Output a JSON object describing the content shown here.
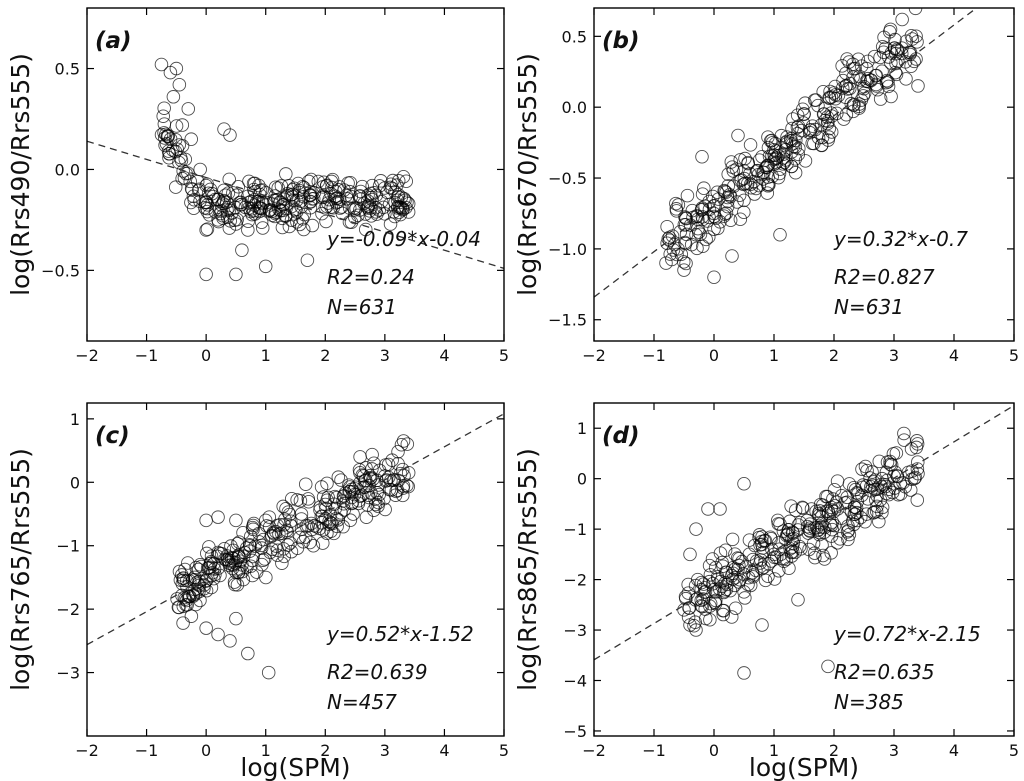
{
  "chart_data": [
    {
      "type": "scatter",
      "panel_label": "(a)",
      "ylabel": "log(Rrs490/Rrs555)",
      "xlabel": "",
      "xlim": [
        -2,
        5
      ],
      "ylim": [
        -0.85,
        0.8
      ],
      "xticks": [
        "−2",
        "−1",
        "0",
        "1",
        "2",
        "3",
        "4",
        "5"
      ],
      "yticks": [
        {
          "v": -0.5,
          "label": "−0.5"
        },
        {
          "v": 0.0,
          "label": "0.0"
        },
        {
          "v": 0.5,
          "label": "0.5"
        }
      ],
      "fit": {
        "slope": -0.09,
        "intercept": -0.04
      },
      "stats": {
        "equation": "y=-0.09*x-0.04",
        "r2": "R2=0.24",
        "n": "N=631"
      },
      "scatter_model": {
        "seed": 11,
        "x_range": [
          -0.8,
          3.4
        ],
        "spread": 0.07
      },
      "points": [
        [
          -0.75,
          0.52
        ],
        [
          -0.6,
          0.48
        ],
        [
          -0.5,
          0.5
        ],
        [
          -0.45,
          0.42
        ],
        [
          -0.55,
          0.36
        ],
        [
          -0.3,
          0.3
        ],
        [
          -0.4,
          0.22
        ],
        [
          -0.25,
          0.15
        ],
        [
          -0.35,
          0.05
        ],
        [
          -0.1,
          0.0
        ],
        [
          0.0,
          -0.08
        ],
        [
          0.1,
          -0.12
        ],
        [
          0.2,
          -0.15
        ],
        [
          0.35,
          -0.2
        ],
        [
          0.5,
          -0.27
        ],
        [
          0.3,
          0.2
        ],
        [
          0.4,
          0.17
        ],
        [
          0.0,
          -0.3
        ],
        [
          0.0,
          -0.52
        ],
        [
          0.5,
          -0.52
        ],
        [
          1.0,
          -0.48
        ],
        [
          1.7,
          -0.45
        ],
        [
          0.6,
          -0.4
        ],
        [
          1.5,
          -0.2
        ],
        [
          2.0,
          -0.19
        ],
        [
          2.5,
          -0.2
        ],
        [
          2.85,
          -0.21
        ],
        [
          3.0,
          -0.22
        ],
        [
          3.3,
          -0.2
        ],
        [
          3.4,
          -0.17
        ],
        [
          0.8,
          -0.1
        ],
        [
          1.2,
          -0.15
        ],
        [
          -0.2,
          -0.15
        ],
        [
          0.2,
          -0.25
        ],
        [
          0.7,
          -0.3
        ]
      ]
    },
    {
      "type": "scatter",
      "panel_label": "(b)",
      "ylabel": "log(Rrs670/Rrs555)",
      "xlabel": "",
      "xlim": [
        -2,
        5
      ],
      "ylim": [
        -1.65,
        0.7
      ],
      "xticks": [
        "−2",
        "−1",
        "0",
        "1",
        "2",
        "3",
        "4",
        "5"
      ],
      "yticks": [
        {
          "v": -1.5,
          "label": "−1.5"
        },
        {
          "v": -1.0,
          "label": "−1.0"
        },
        {
          "v": -0.5,
          "label": "−0.5"
        },
        {
          "v": 0.0,
          "label": "0.0"
        },
        {
          "v": 0.5,
          "label": "0.5"
        }
      ],
      "fit": {
        "slope": 0.32,
        "intercept": -0.7
      },
      "stats": {
        "equation": "y=0.32*x-0.7",
        "r2": "R2=0.827",
        "n": "N=631"
      },
      "scatter_model": {
        "seed": 23,
        "x_range": [
          -0.8,
          3.4
        ],
        "spread": 0.14
      },
      "points": [
        [
          -0.8,
          -1.1
        ],
        [
          -0.6,
          -1.0
        ],
        [
          -0.5,
          -1.15
        ],
        [
          -0.3,
          -0.9
        ],
        [
          0.0,
          -0.75
        ],
        [
          0.2,
          -0.6
        ],
        [
          0.5,
          -0.45
        ],
        [
          0.8,
          -0.35
        ],
        [
          1.0,
          -0.3
        ],
        [
          1.3,
          -0.15
        ],
        [
          1.5,
          -0.05
        ],
        [
          1.7,
          0.05
        ],
        [
          2.0,
          0.1
        ],
        [
          2.5,
          0.13
        ],
        [
          2.9,
          0.18
        ],
        [
          3.2,
          0.2
        ],
        [
          3.4,
          0.15
        ],
        [
          0.0,
          -1.2
        ],
        [
          0.3,
          -1.05
        ],
        [
          1.1,
          -0.9
        ],
        [
          -0.2,
          -0.35
        ],
        [
          0.4,
          -0.2
        ],
        [
          1.2,
          -0.25
        ],
        [
          1.9,
          -0.1
        ]
      ]
    },
    {
      "type": "scatter",
      "panel_label": "(c)",
      "ylabel": "log(Rrs765/Rrs555)",
      "xlabel": "log(SPM)",
      "xlim": [
        -2,
        5
      ],
      "ylim": [
        -4.0,
        1.25
      ],
      "xticks": [
        "−2",
        "−1",
        "0",
        "1",
        "2",
        "3",
        "4",
        "5"
      ],
      "yticks": [
        {
          "v": -3,
          "label": "−3"
        },
        {
          "v": -2,
          "label": "−2"
        },
        {
          "v": -1,
          "label": "−1"
        },
        {
          "v": 0,
          "label": "0"
        },
        {
          "v": 1,
          "label": "1"
        }
      ],
      "fit": {
        "slope": 0.52,
        "intercept": -1.52
      },
      "stats": {
        "equation": "y=0.52*x-1.52",
        "r2": "R2=0.639",
        "n": "N=457"
      },
      "scatter_model": {
        "seed": 37,
        "x_range": [
          -0.5,
          3.4
        ],
        "spread": 0.28
      },
      "points": [
        [
          -0.4,
          -1.6
        ],
        [
          -0.3,
          -1.8
        ],
        [
          -0.1,
          -1.3
        ],
        [
          0.0,
          -0.6
        ],
        [
          0.2,
          -0.55
        ],
        [
          0.5,
          -0.6
        ],
        [
          0.8,
          -0.65
        ],
        [
          1.0,
          -0.6
        ],
        [
          0.0,
          -2.3
        ],
        [
          0.2,
          -2.4
        ],
        [
          0.4,
          -2.5
        ],
        [
          0.7,
          -2.7
        ],
        [
          1.05,
          -3.0
        ],
        [
          0.5,
          -2.15
        ],
        [
          1.3,
          -1.05
        ],
        [
          1.6,
          -0.5
        ],
        [
          2.0,
          -0.35
        ],
        [
          2.4,
          -0.15
        ],
        [
          2.8,
          0.05
        ],
        [
          3.0,
          0.1
        ],
        [
          3.3,
          0.2
        ],
        [
          3.4,
          0.15
        ],
        [
          2.3,
          -0.7
        ],
        [
          1.8,
          -1.0
        ]
      ]
    },
    {
      "type": "scatter",
      "panel_label": "(d)",
      "ylabel": "log(Rrs865/Rrs555)",
      "xlabel": "log(SPM)",
      "xlim": [
        -2,
        5
      ],
      "ylim": [
        -5.1,
        1.5
      ],
      "xticks": [
        "−2",
        "−1",
        "0",
        "1",
        "2",
        "3",
        "4",
        "5"
      ],
      "yticks": [
        {
          "v": -5,
          "label": "−5"
        },
        {
          "v": -4,
          "label": "−4"
        },
        {
          "v": -3,
          "label": "−3"
        },
        {
          "v": -2,
          "label": "−2"
        },
        {
          "v": -1,
          "label": "−1"
        },
        {
          "v": 0,
          "label": "0"
        },
        {
          "v": 1,
          "label": "1"
        }
      ],
      "fit": {
        "slope": 0.72,
        "intercept": -2.15
      },
      "stats": {
        "equation": "y=0.72*x-2.15",
        "r2": "R2=0.635",
        "n": "N=385"
      },
      "scatter_model": {
        "seed": 53,
        "x_range": [
          -0.5,
          3.4
        ],
        "spread": 0.42
      },
      "points": [
        [
          -0.5,
          -2.6
        ],
        [
          -0.4,
          -2.9
        ],
        [
          -0.3,
          -3.0
        ],
        [
          -0.4,
          -1.5
        ],
        [
          -0.3,
          -1.0
        ],
        [
          -0.1,
          -0.6
        ],
        [
          0.1,
          -0.6
        ],
        [
          0.5,
          -0.1
        ],
        [
          0.5,
          -3.85
        ],
        [
          1.9,
          -3.72
        ],
        [
          0.0,
          -2.2
        ],
        [
          0.4,
          -1.8
        ],
        [
          1.0,
          -1.5
        ],
        [
          1.3,
          -1.2
        ],
        [
          1.6,
          -0.9
        ],
        [
          2.0,
          -0.65
        ],
        [
          2.4,
          -0.3
        ],
        [
          2.8,
          0.0
        ],
        [
          3.0,
          0.05
        ],
        [
          3.3,
          0.15
        ],
        [
          3.4,
          0.1
        ],
        [
          1.4,
          -2.4
        ],
        [
          0.8,
          -2.9
        ],
        [
          1.1,
          -0.9
        ]
      ]
    }
  ]
}
